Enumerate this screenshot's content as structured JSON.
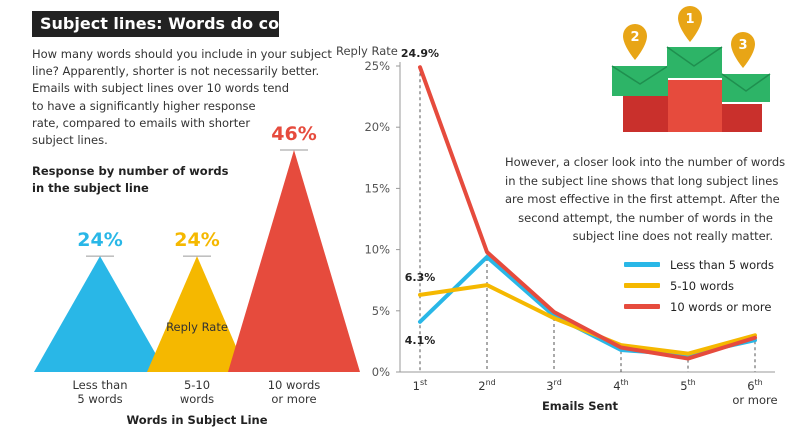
{
  "title": "Subject lines: Words do come easy",
  "intro_lines": [
    "How many words should you include in your subject",
    "line? Apparently, shorter is not necessarily better.",
    "Emails with subject lines over 10 words tend",
    "to have a significantly higher response",
    "rate, compared to emails with shorter",
    "subject lines."
  ],
  "left_heading": [
    "Response by number of words",
    "in the subject line"
  ],
  "right_note_lines": [
    "However, a closer look into the number of words",
    "in the subject line shows that long subject lines",
    "are most effective in the first attempt. After the",
    "second attempt, the number of words in the",
    "subject line does not really matter."
  ],
  "podium": {
    "labels": [
      "1",
      "2",
      "3"
    ]
  },
  "colors": {
    "blue": "#29b7e7",
    "yellow": "#f5b800",
    "red": "#e64b3d",
    "green": "#2db467",
    "dark_red": "#c9302c",
    "gold": "#e8a516"
  },
  "chart_data": [
    {
      "type": "bar",
      "shape": "triangle",
      "categories": [
        [
          "Less than",
          "5 words"
        ],
        [
          "5-10",
          "words"
        ],
        [
          "10 words",
          "or more"
        ]
      ],
      "values": [
        24,
        24,
        46
      ],
      "value_labels": [
        "24%",
        "24%",
        "46%"
      ],
      "ylabel": "Reply Rate",
      "xlabel": "Words in Subject Line",
      "ylim": [
        0,
        46
      ],
      "colors": [
        "#29b7e7",
        "#f5b800",
        "#e64b3d"
      ]
    },
    {
      "type": "line",
      "x": [
        "1st",
        "2nd",
        "3rd",
        "4th",
        "5th",
        "6th or more"
      ],
      "x_ticks": [
        {
          "base": "1",
          "sup": "st",
          "extra": ""
        },
        {
          "base": "2",
          "sup": "nd",
          "extra": ""
        },
        {
          "base": "3",
          "sup": "rd",
          "extra": ""
        },
        {
          "base": "4",
          "sup": "th",
          "extra": ""
        },
        {
          "base": "5",
          "sup": "th",
          "extra": ""
        },
        {
          "base": "6",
          "sup": "th",
          "extra": "or more"
        }
      ],
      "ylabel": "Reply Rate",
      "xlabel": "Emails Sent",
      "ylim": [
        0,
        25
      ],
      "y_ticks": [
        0,
        5,
        10,
        15,
        20,
        25
      ],
      "y_tick_labels": [
        "0%",
        "5%",
        "10%",
        "15%",
        "20%",
        "25%"
      ],
      "series": [
        {
          "name": "Less than 5 words",
          "color": "#29b7e7",
          "values": [
            4.1,
            9.4,
            4.6,
            1.8,
            1.4,
            2.6
          ]
        },
        {
          "name": "5-10 words",
          "color": "#f5b800",
          "values": [
            6.3,
            7.1,
            4.4,
            2.2,
            1.5,
            3.0
          ]
        },
        {
          "name": "10 words or more",
          "color": "#e64b3d",
          "values": [
            24.9,
            9.8,
            4.9,
            2.0,
            1.1,
            2.8
          ]
        }
      ],
      "annotations": [
        "24.9%",
        "6.3%",
        "4.1%"
      ],
      "grid": false,
      "legend": "right"
    }
  ]
}
